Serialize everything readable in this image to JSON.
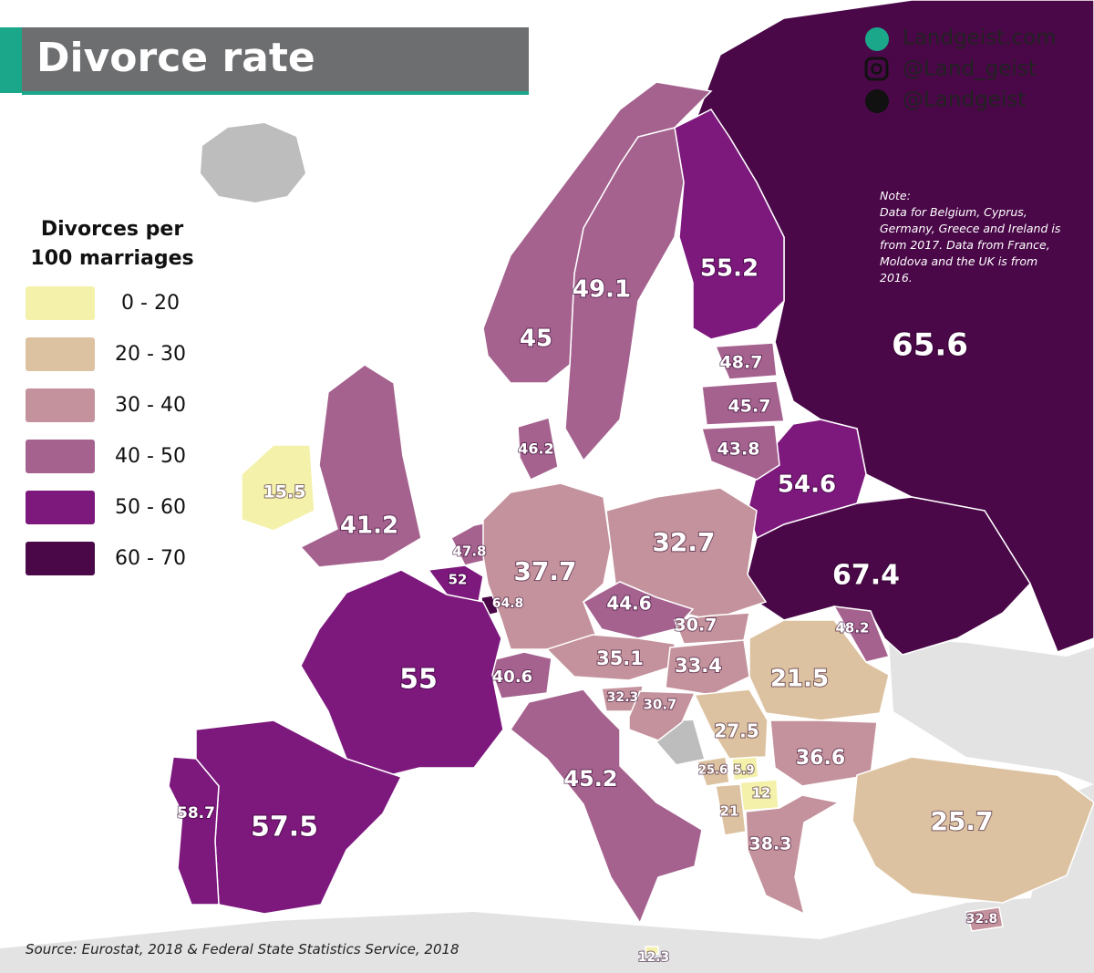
{
  "title": "Divorce rate",
  "links": [
    "Landgeist.com",
    "@Land_geist",
    "@Landgeist"
  ],
  "note": {
    "heading": "Note:",
    "text": "Data for Belgium, Cyprus, Germany, Greece and Ireland is from 2017. Data from France, Moldova and the UK is from 2016."
  },
  "legend": {
    "title": "Divorces per 100 marriages",
    "bins": [
      0,
      20,
      30,
      40,
      50,
      60,
      70
    ],
    "labels": [
      "0 - 20",
      "20 - 30",
      "30 - 40",
      "40 - 50",
      "50 - 60",
      "60 - 70"
    ],
    "colors": [
      "#f4f1ab",
      "#dcc2a0",
      "#c4929c",
      "#a5628f",
      "#7d187d",
      "#4a0848"
    ]
  },
  "map": {
    "values": [
      65.6,
      67.4,
      54.6,
      55.2,
      49.1,
      45,
      48.7,
      45.7,
      43.8,
      46.2,
      15.5,
      41.2,
      47.8,
      52,
      64.8,
      37.7,
      32.7,
      44.6,
      30.7,
      35.1,
      33.4,
      40.6,
      32.3,
      30.7,
      48.2,
      21.5,
      27.5,
      36.6,
      25.6,
      5.9,
      12,
      21,
      38.3,
      25.7,
      45.2,
      55,
      57.5,
      58.7,
      32.8,
      12.3
    ]
  },
  "source": "Source: Eurostat, 2018 & Federal State Statistics Service, 2018"
}
